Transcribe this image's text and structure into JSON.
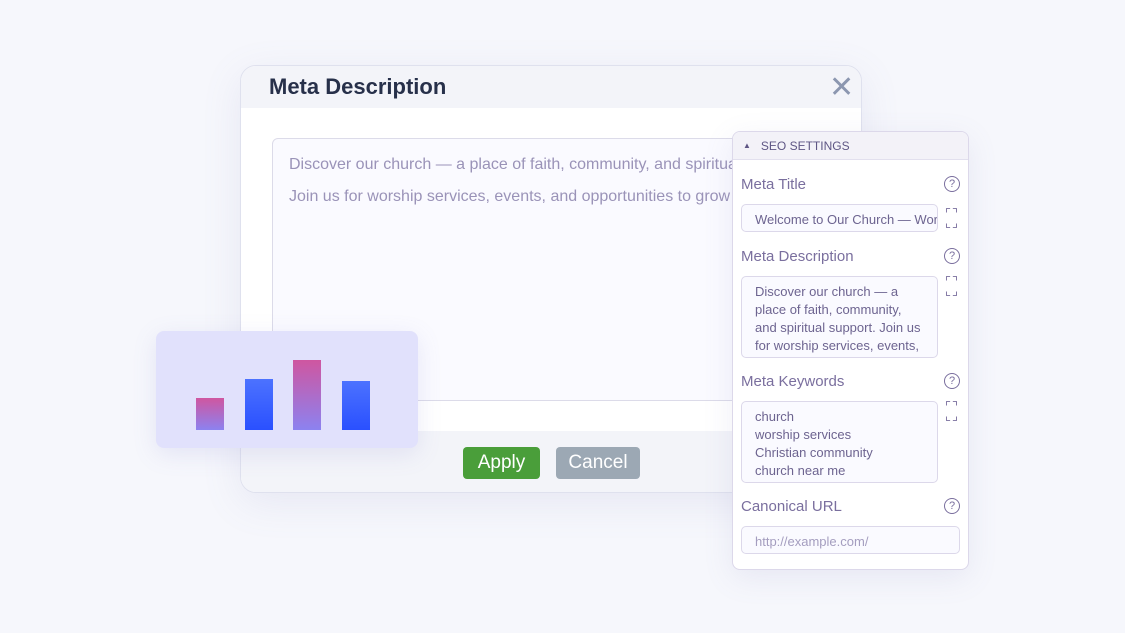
{
  "dialog": {
    "title": "Meta Description",
    "close_icon": "close-icon",
    "text": "Discover our church — a place of faith, community, and spiritual support. Join us for worship services, events, and opportunities to grow in God.",
    "apply_label": "Apply",
    "cancel_label": "Cancel",
    "colors": {
      "apply": "#4a9e3a",
      "cancel": "#9ca8b4"
    }
  },
  "illustration": {
    "bar_levels": [
      0.46,
      0.71,
      1.0,
      0.7
    ],
    "colors": [
      "pink",
      "blue",
      "pink",
      "blue"
    ]
  },
  "seo": {
    "header": "SEO SETTINGS",
    "meta_title": {
      "label": "Meta Title",
      "value": "Welcome to Our Church — Worship, Community & Faith"
    },
    "meta_description": {
      "label": "Meta Description",
      "value": "Discover our church — a place of faith, community, and spiritual support. Join us for worship services, events, and"
    },
    "meta_keywords": {
      "label": "Meta Keywords",
      "values": [
        "church",
        "worship services",
        "Christian community",
        "church near me"
      ]
    },
    "canonical_url": {
      "label": "Canonical URL",
      "placeholder": "http://example.com/"
    }
  }
}
